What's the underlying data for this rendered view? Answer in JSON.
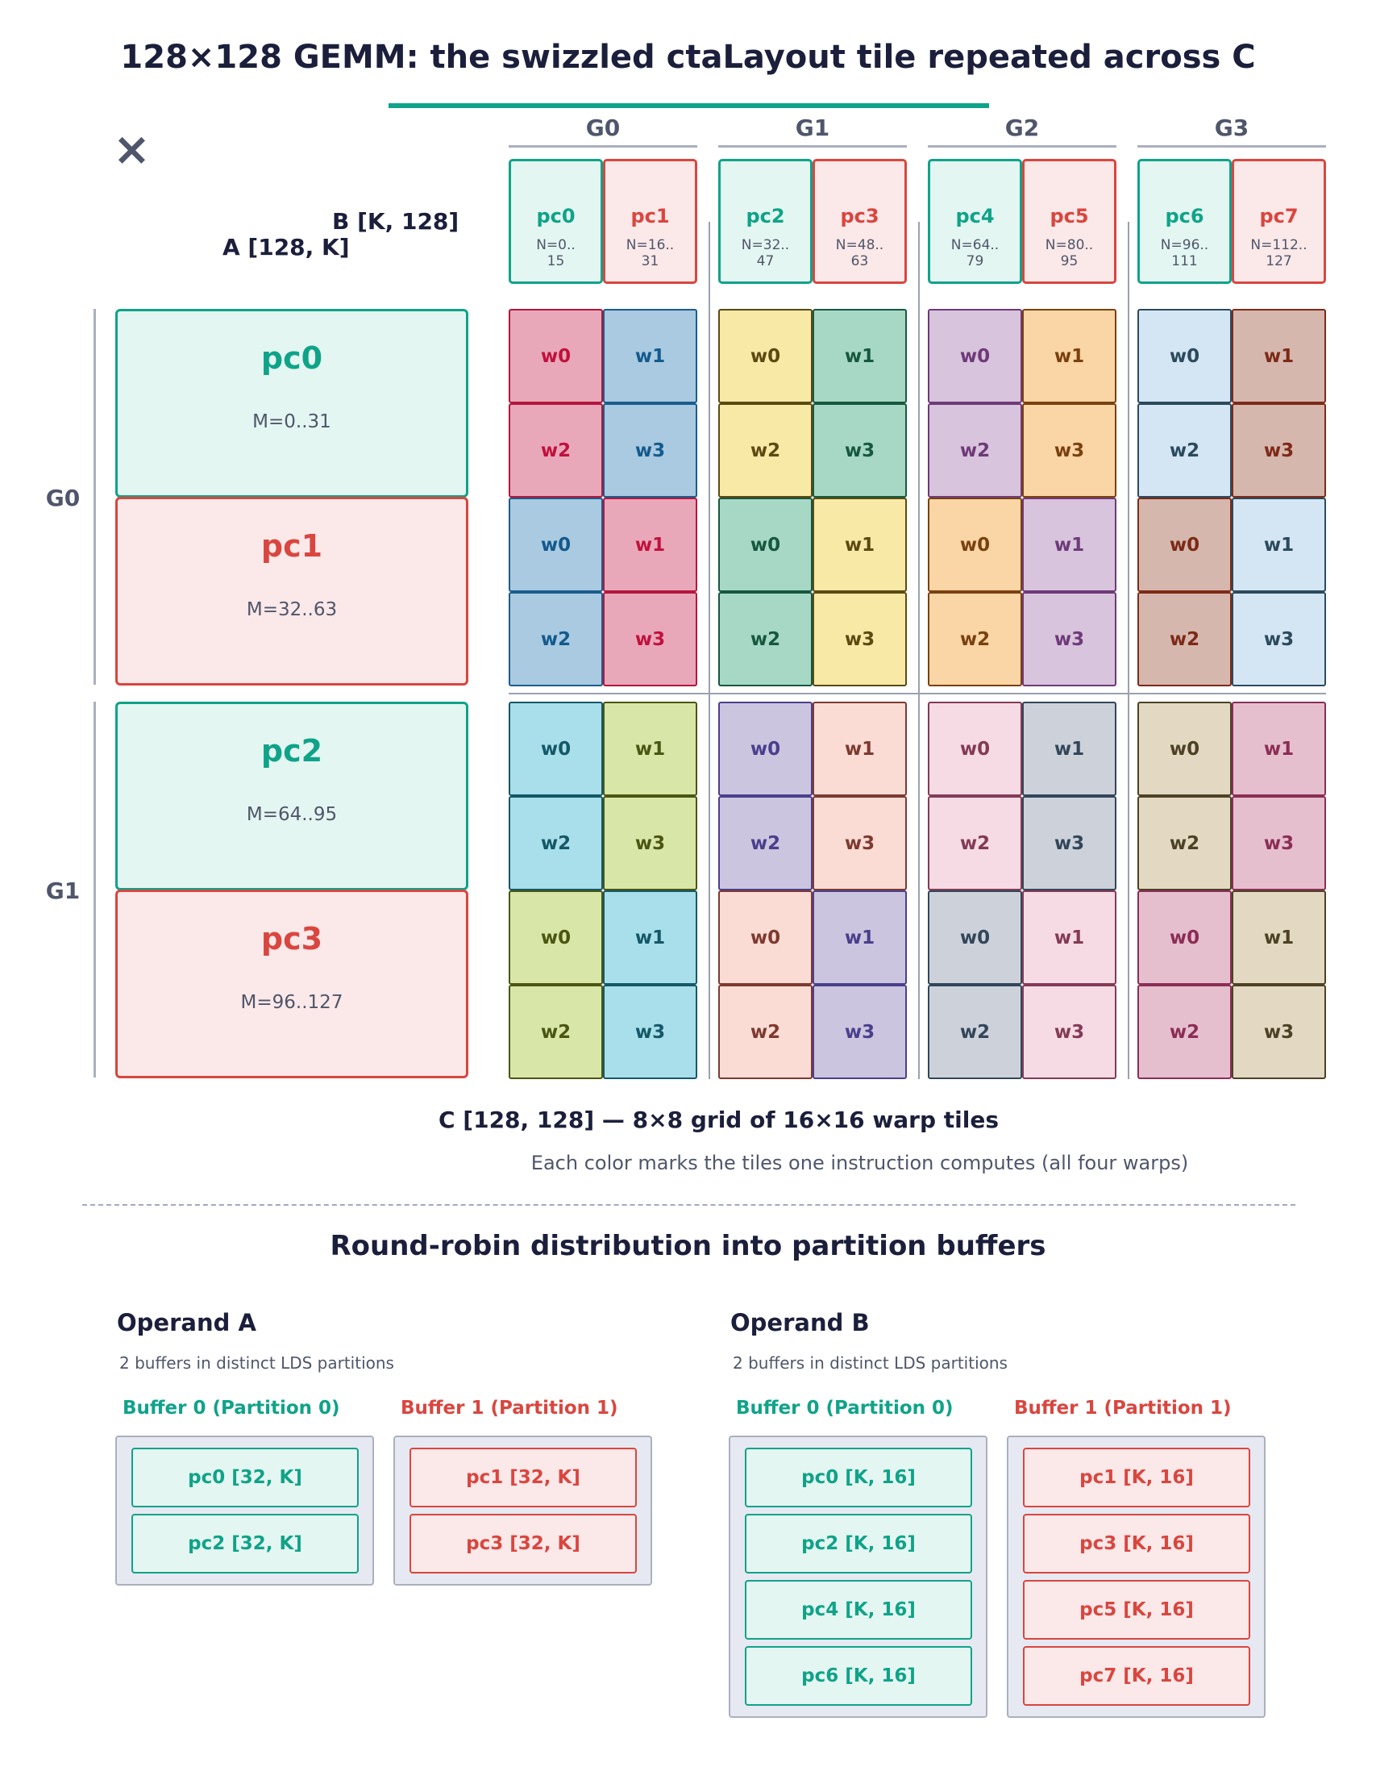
{
  "title": "128×128 GEMM: the swizzled ctaLayout tile repeated across C",
  "multiply_symbol": "×",
  "b_label": "B  [K, 128]",
  "a_label": "A  [128, K]",
  "col_groups": [
    "G0",
    "G1",
    "G2",
    "G3"
  ],
  "row_groups": [
    "G0",
    "G1"
  ],
  "b_tiles": [
    {
      "name": "pc0",
      "range1": "N=0..",
      "range2": "15",
      "color": "teal"
    },
    {
      "name": "pc1",
      "range1": "N=16..",
      "range2": "31",
      "color": "red"
    },
    {
      "name": "pc2",
      "range1": "N=32..",
      "range2": "47",
      "color": "teal"
    },
    {
      "name": "pc3",
      "range1": "N=48..",
      "range2": "63",
      "color": "red"
    },
    {
      "name": "pc4",
      "range1": "N=64..",
      "range2": "79",
      "color": "teal"
    },
    {
      "name": "pc5",
      "range1": "N=80..",
      "range2": "95",
      "color": "red"
    },
    {
      "name": "pc6",
      "range1": "N=96..",
      "range2": "111",
      "color": "teal"
    },
    {
      "name": "pc7",
      "range1": "N=112..",
      "range2": "127",
      "color": "red"
    }
  ],
  "a_tiles": [
    {
      "name": "pc0",
      "range": "M=0..31",
      "color": "teal"
    },
    {
      "name": "pc1",
      "range": "M=32..63",
      "color": "red"
    },
    {
      "name": "pc2",
      "range": "M=64..95",
      "color": "teal"
    },
    {
      "name": "pc3",
      "range": "M=96..127",
      "color": "red"
    }
  ],
  "warp_labels": [
    "w0",
    "w1",
    "w2",
    "w3"
  ],
  "tile_palette": [
    {
      "fill": "#e9a8b9",
      "stroke": "#b3163f",
      "text": "#c0123d"
    },
    {
      "fill": "#a9cae0",
      "stroke": "#1b5c8c",
      "text": "#145a8d"
    },
    {
      "fill": "#f9e9a6",
      "stroke": "#5c4a12",
      "text": "#5c4a12"
    },
    {
      "fill": "#a7d8c6",
      "stroke": "#17583e",
      "text": "#17583e"
    },
    {
      "fill": "#d8c4dc",
      "stroke": "#6e3a79",
      "text": "#6e3a79"
    },
    {
      "fill": "#fad5a6",
      "stroke": "#7a4110",
      "text": "#7a4110"
    },
    {
      "fill": "#d4e6f4",
      "stroke": "#2c4a5e",
      "text": "#2c4a5e"
    },
    {
      "fill": "#d6b7ad",
      "stroke": "#7d2a18",
      "text": "#7d2a18"
    },
    {
      "fill": "#a9dfea",
      "stroke": "#155868",
      "text": "#155868"
    },
    {
      "fill": "#d8e6a8",
      "stroke": "#4a5612",
      "text": "#4a5612"
    },
    {
      "fill": "#cbc5df",
      "stroke": "#4b3f8c",
      "text": "#4b3f8c"
    },
    {
      "fill": "#fbdcd4",
      "stroke": "#7d3a30",
      "text": "#7d3a30"
    },
    {
      "fill": "#f6dbe4",
      "stroke": "#843a55",
      "text": "#843a55"
    },
    {
      "fill": "#cdd2da",
      "stroke": "#33465a",
      "text": "#33465a"
    },
    {
      "fill": "#e3d9c3",
      "stroke": "#4d4226",
      "text": "#4d4226"
    },
    {
      "fill": "#e6bfcf",
      "stroke": "#8b2e55",
      "text": "#8b2e55"
    }
  ],
  "c_caption": "C  [128, 128]   —   8×8 grid of 16×16 warp tiles",
  "c_subcaption": "Each color marks the tiles one instruction computes (all four warps)",
  "section_title": "Round-robin distribution into partition buffers",
  "operands": [
    {
      "title": "Operand A",
      "subtitle": "2 buffers in distinct LDS partitions",
      "buffers": [
        {
          "label": "Buffer 0  (Partition 0)",
          "color": "teal",
          "items": [
            "pc0  [32, K]",
            "pc2  [32, K]"
          ]
        },
        {
          "label": "Buffer 1  (Partition 1)",
          "color": "red",
          "items": [
            "pc1  [32, K]",
            "pc3  [32, K]"
          ]
        }
      ]
    },
    {
      "title": "Operand B",
      "subtitle": "2 buffers in distinct LDS partitions",
      "buffers": [
        {
          "label": "Buffer 0  (Partition 0)",
          "color": "teal",
          "items": [
            "pc0  [K, 16]",
            "pc2  [K, 16]",
            "pc4  [K, 16]",
            "pc6  [K, 16]"
          ]
        },
        {
          "label": "Buffer 1  (Partition 1)",
          "color": "red",
          "items": [
            "pc1  [K, 16]",
            "pc3  [K, 16]",
            "pc5  [K, 16]",
            "pc7  [K, 16]"
          ]
        }
      ]
    }
  ]
}
